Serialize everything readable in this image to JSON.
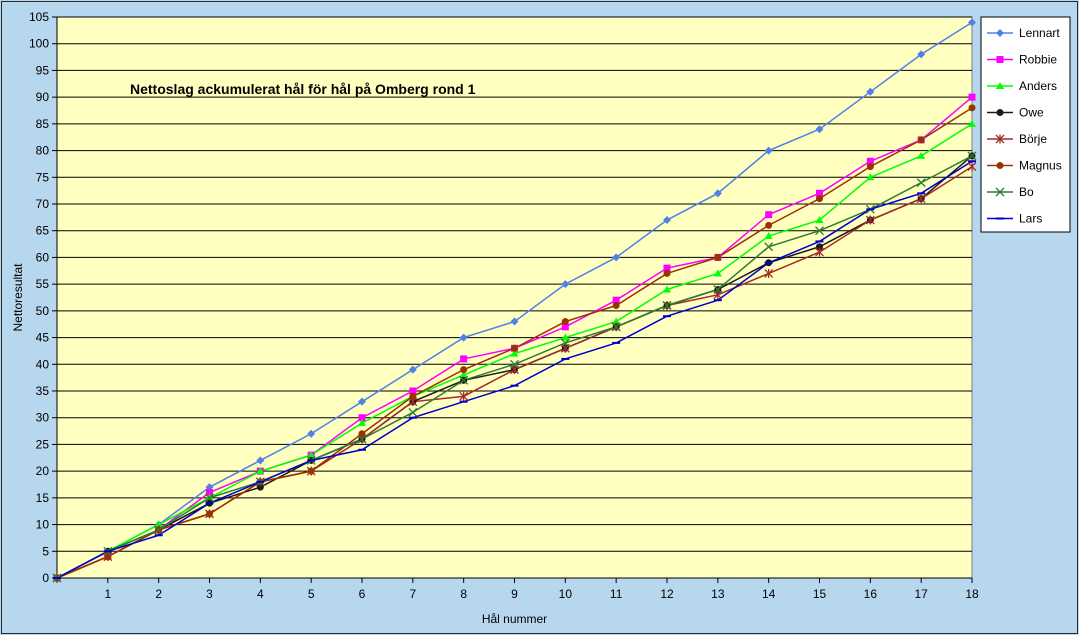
{
  "chart_data": {
    "type": "line",
    "title": "Nettoslag ackumulerat hål för hål på Omberg rond 1",
    "xlabel": "Hål nummer",
    "ylabel": "Nettoresultat",
    "x": [
      0,
      1,
      2,
      3,
      4,
      5,
      6,
      7,
      8,
      9,
      10,
      11,
      12,
      13,
      14,
      15,
      16,
      17,
      18
    ],
    "x_tick_labels": [
      "1",
      "2",
      "3",
      "4",
      "5",
      "6",
      "7",
      "8",
      "9",
      "10",
      "11",
      "12",
      "13",
      "14",
      "15",
      "16",
      "17",
      "18"
    ],
    "y_ticks": [
      0,
      5,
      10,
      15,
      20,
      25,
      30,
      35,
      40,
      45,
      50,
      55,
      60,
      65,
      70,
      75,
      80,
      85,
      90,
      95,
      100,
      105
    ],
    "xlim": [
      0,
      18
    ],
    "ylim": [
      0,
      105
    ],
    "grid": "horizontal",
    "legend_position": "right",
    "plot_background": "#ffffc0",
    "series": [
      {
        "name": "Lennart",
        "color": "#4f81e8",
        "marker": "diamond",
        "values": [
          0,
          5,
          10,
          17,
          22,
          27,
          33,
          39,
          45,
          48,
          55,
          60,
          67,
          72,
          80,
          84,
          91,
          98,
          104
        ]
      },
      {
        "name": "Robbie",
        "color": "#ff00ff",
        "marker": "square",
        "values": [
          0,
          4,
          9,
          16,
          20,
          23,
          30,
          35,
          41,
          43,
          47,
          52,
          58,
          60,
          68,
          72,
          78,
          82,
          90
        ]
      },
      {
        "name": "Anders",
        "color": "#00ff00",
        "marker": "triangle",
        "values": [
          0,
          5,
          10,
          15,
          20,
          23,
          29,
          34,
          38,
          42,
          45,
          48,
          54,
          57,
          64,
          67,
          75,
          79,
          85
        ]
      },
      {
        "name": "Owe",
        "color": "#1a1a1a",
        "marker": "circle",
        "values": [
          0,
          5,
          9,
          14,
          17,
          22,
          26,
          33,
          37,
          39,
          43,
          47,
          51,
          54,
          59,
          62,
          67,
          71,
          79
        ]
      },
      {
        "name": "Börje",
        "color": "#a52a2a",
        "marker": "star",
        "values": [
          0,
          4,
          9,
          12,
          18,
          20,
          26,
          33,
          34,
          39,
          43,
          47,
          51,
          53,
          57,
          61,
          67,
          71,
          77
        ]
      },
      {
        "name": "Magnus",
        "color": "#993300",
        "marker": "dot",
        "values": [
          0,
          4,
          9,
          12,
          18,
          20,
          27,
          34,
          39,
          43,
          48,
          51,
          57,
          60,
          66,
          71,
          77,
          82,
          88
        ]
      },
      {
        "name": "Bo",
        "color": "#2e7d32",
        "marker": "asterisk",
        "values": [
          0,
          5,
          9,
          15,
          18,
          22,
          26,
          31,
          37,
          40,
          44,
          47,
          51,
          54,
          62,
          65,
          69,
          74,
          79
        ]
      },
      {
        "name": "Lars",
        "color": "#0000cc",
        "marker": "dash",
        "values": [
          0,
          5,
          8,
          14,
          18,
          22,
          24,
          30,
          33,
          36,
          41,
          44,
          49,
          52,
          59,
          63,
          69,
          72,
          78
        ]
      }
    ]
  }
}
